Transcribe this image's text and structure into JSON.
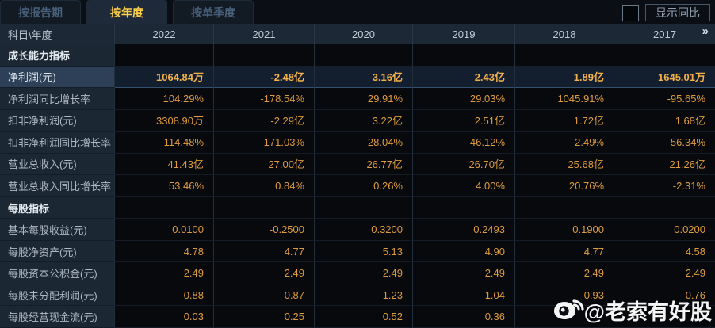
{
  "tabs": [
    {
      "label": "按报告期",
      "active": false
    },
    {
      "label": "按年度",
      "active": true
    },
    {
      "label": "按单季度",
      "active": false
    }
  ],
  "controls": {
    "show_yoy_label": "显示同比",
    "checkbox_checked": false
  },
  "colors": {
    "accent_tab": "#ffd04a",
    "value_text": "#de9c3e",
    "selected_value_text": "#f2b14a"
  },
  "table": {
    "corner_header": "科目\\年度",
    "year_headers": [
      "2022",
      "2021",
      "2020",
      "2019",
      "2018",
      "2017"
    ],
    "next_arrow": "»",
    "rows": [
      {
        "type": "section",
        "label": "成长能力指标",
        "values": [
          "",
          "",
          "",
          "",
          "",
          ""
        ]
      },
      {
        "type": "data",
        "selected": true,
        "label": "净利润(元)",
        "values": [
          "1064.84万",
          "-2.48亿",
          "3.16亿",
          "2.43亿",
          "1.89亿",
          "1645.01万"
        ]
      },
      {
        "type": "data",
        "label": "净利润同比增长率",
        "values": [
          "104.29%",
          "-178.54%",
          "29.91%",
          "29.03%",
          "1045.91%",
          "-95.65%"
        ]
      },
      {
        "type": "data",
        "label": "扣非净利润(元)",
        "values": [
          "3308.90万",
          "-2.29亿",
          "3.22亿",
          "2.51亿",
          "1.72亿",
          "1.68亿"
        ]
      },
      {
        "type": "data",
        "label": "扣非净利润同比增长率",
        "values": [
          "114.48%",
          "-171.03%",
          "28.04%",
          "46.12%",
          "2.49%",
          "-56.34%"
        ]
      },
      {
        "type": "data",
        "label": "营业总收入(元)",
        "values": [
          "41.43亿",
          "27.00亿",
          "26.77亿",
          "26.70亿",
          "25.68亿",
          "21.26亿"
        ]
      },
      {
        "type": "data",
        "label": "营业总收入同比增长率",
        "values": [
          "53.46%",
          "0.84%",
          "0.26%",
          "4.00%",
          "20.76%",
          "-2.31%"
        ]
      },
      {
        "type": "section",
        "label": "每股指标",
        "values": [
          "",
          "",
          "",
          "",
          "",
          ""
        ]
      },
      {
        "type": "data",
        "label": "基本每股收益(元)",
        "values": [
          "0.0100",
          "-0.2500",
          "0.3200",
          "0.2493",
          "0.1900",
          "0.0200"
        ]
      },
      {
        "type": "data",
        "label": "每股净资产(元)",
        "values": [
          "4.78",
          "4.77",
          "5.13",
          "4.90",
          "4.77",
          "4.58"
        ]
      },
      {
        "type": "data",
        "label": "每股资本公积金(元)",
        "values": [
          "2.49",
          "2.49",
          "2.49",
          "2.49",
          "2.49",
          "2.49"
        ]
      },
      {
        "type": "data",
        "label": "每股未分配利润(元)",
        "values": [
          "0.88",
          "0.87",
          "1.23",
          "1.04",
          "0.93",
          "0.76"
        ]
      },
      {
        "type": "data",
        "label": "每股经营现金流(元)",
        "values": [
          "0.03",
          "0.25",
          "0.52",
          "0.36",
          "",
          ""
        ]
      }
    ]
  },
  "watermark": {
    "text": "@老索有好股",
    "icon": "weibo-icon"
  }
}
